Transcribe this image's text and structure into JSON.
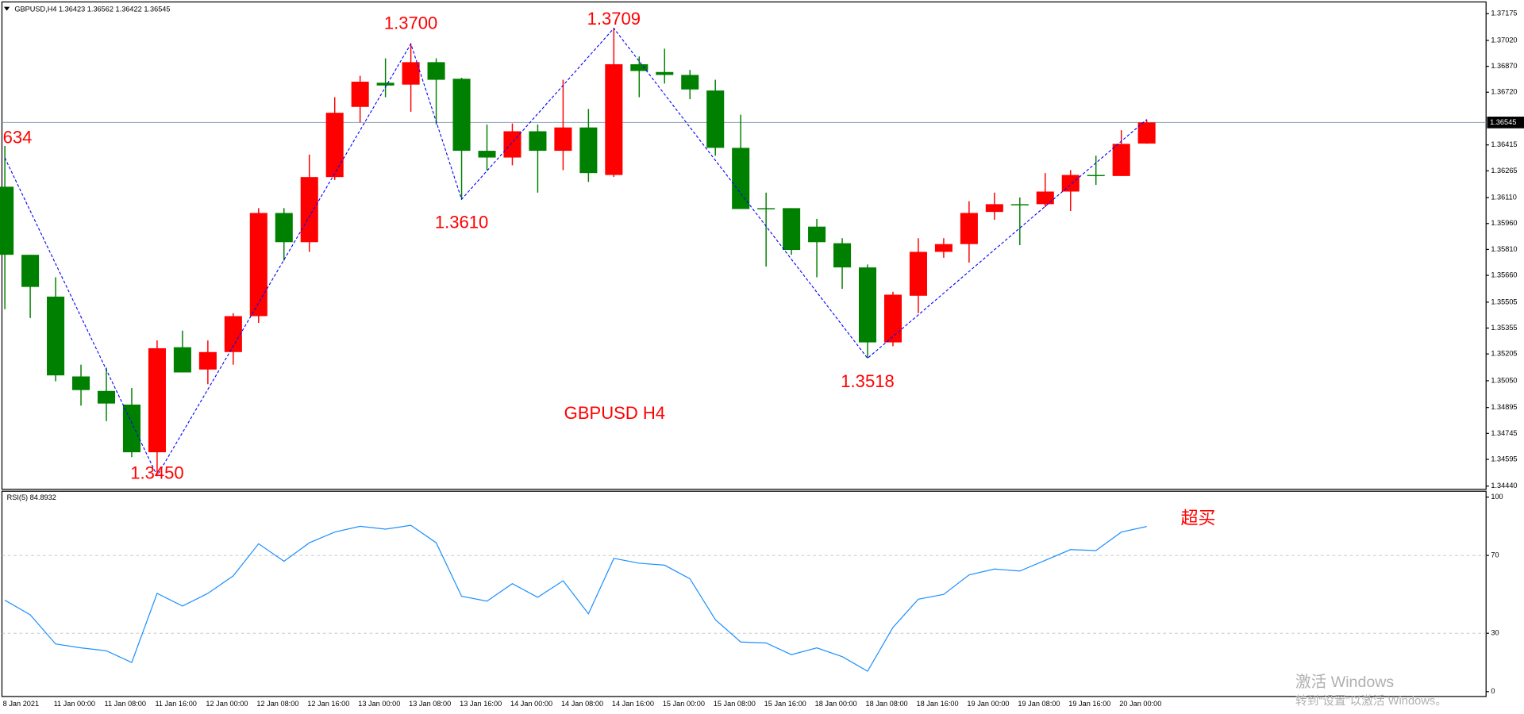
{
  "chart_data": [
    {
      "type": "candlestick",
      "title": "GBPUSD,H4",
      "annotation": "GBPUSD  H4",
      "categories": [
        "8 Jan 2021",
        null,
        "11 Jan 00:00",
        null,
        "11 Jan 08:00",
        null,
        "11 Jan 16:00",
        null,
        "12 Jan 00:00",
        null,
        "12 Jan 08:00",
        null,
        "12 Jan 16:00",
        null,
        "13 Jan 00:00",
        null,
        "13 Jan 08:00",
        null,
        "13 Jan 16:00",
        null,
        "14 Jan 00:00",
        null,
        "14 Jan 08:00",
        null,
        "14 Jan 16:00",
        null,
        "15 Jan 00:00",
        null,
        "15 Jan 08:00",
        null,
        "15 Jan 16:00",
        null,
        "18 Jan 00:00",
        null,
        "18 Jan 08:00",
        null,
        "18 Jan 16:00",
        null,
        "19 Jan 00:00",
        null,
        "19 Jan 08:00",
        null,
        "19 Jan 16:00",
        null,
        "20 Jan 00:00",
        null
      ],
      "open": [
        1.36173,
        1.35779,
        1.35537,
        1.35075,
        1.34991,
        1.34912,
        1.34636,
        1.35244,
        1.35115,
        1.35216,
        1.35424,
        1.36021,
        1.35852,
        1.36229,
        1.36635,
        1.36775,
        1.36764,
        1.36894,
        1.36798,
        1.36381,
        1.36342,
        1.36494,
        1.36381,
        1.36516,
        1.36241,
        1.36882,
        1.36837,
        1.3682,
        1.3673,
        1.36398,
        1.36049,
        1.36049,
        1.35942,
        1.35846,
        1.35706,
        1.35272,
        1.35542,
        1.35796,
        1.35841,
        1.36027,
        1.36072,
        1.36072,
        1.36145,
        1.36241,
        1.36235,
        1.36423
      ],
      "high": [
        1.36409,
        1.35779,
        1.35649,
        1.35143,
        1.35126,
        1.35008,
        1.35283,
        1.3534,
        1.35283,
        1.35441,
        1.36049,
        1.36049,
        1.36359,
        1.36691,
        1.36815,
        1.36916,
        1.37,
        1.36916,
        1.36804,
        1.36533,
        1.36539,
        1.36533,
        1.36792,
        1.36623,
        1.3709,
        1.36927,
        1.36972,
        1.36849,
        1.36792,
        1.3659,
        1.36139,
        1.36049,
        1.35987,
        1.35875,
        1.35723,
        1.35565,
        1.35875,
        1.35875,
        1.36089,
        1.36139,
        1.36111,
        1.36252,
        1.36269,
        1.36353,
        1.365,
        1.36562
      ],
      "low": [
        1.35464,
        1.35413,
        1.35047,
        1.34906,
        1.34816,
        1.34608,
        1.345,
        1.35098,
        1.3503,
        1.35143,
        1.35385,
        1.35745,
        1.35796,
        1.36212,
        1.36545,
        1.36691,
        1.36607,
        1.36533,
        1.361,
        1.36269,
        1.36297,
        1.36139,
        1.36269,
        1.36201,
        1.36229,
        1.36691,
        1.3677,
        1.3668,
        1.36353,
        1.36044,
        1.35711,
        1.35779,
        1.35649,
        1.35582,
        1.3518,
        1.3525,
        1.35441,
        1.35762,
        1.35734,
        1.35982,
        1.35835,
        1.36055,
        1.36032,
        1.36184,
        1.36235,
        1.36422
      ],
      "close": [
        1.35779,
        1.35593,
        1.35081,
        1.34996,
        1.34918,
        1.34636,
        1.35238,
        1.35098,
        1.35216,
        1.35424,
        1.36021,
        1.35852,
        1.36229,
        1.36601,
        1.36781,
        1.36759,
        1.36894,
        1.36792,
        1.36381,
        1.36342,
        1.36494,
        1.36381,
        1.36516,
        1.36252,
        1.36882,
        1.36843,
        1.3682,
        1.36736,
        1.36398,
        1.36044,
        1.36044,
        1.35807,
        1.35852,
        1.35706,
        1.35272,
        1.35548,
        1.35796,
        1.35841,
        1.36021,
        1.36072,
        1.36066,
        1.36145,
        1.36241,
        1.36235,
        1.36421,
        1.36545
      ],
      "up_color": "#ff0000",
      "down_color": "#008000",
      "zigzag_index": [
        0,
        6,
        16,
        18,
        24,
        34,
        45
      ],
      "zigzag_values": [
        1.3634,
        1.345,
        1.37,
        1.361,
        1.3709,
        1.3518,
        1.36562
      ],
      "zigzag_labels": [
        "634",
        "1.3450",
        "1.3700",
        "1.3610",
        "1.3709",
        "1.3518",
        null
      ],
      "zigzag_color": "#0000ff",
      "ylim": [
        1.3442,
        1.3724
      ],
      "yticks": [
        1.37175,
        {
          "value": 1.3702,
          "label": "1.37020"
        },
        {
          "value": 1.3687,
          "label": "1.36870"
        },
        {
          "value": 1.3672,
          "label": "1.36720"
        },
        1.36415,
        1.36265,
        {
          "value": 1.3611,
          "label": "1.36110"
        },
        {
          "value": 1.3596,
          "label": "1.35960"
        },
        {
          "value": 1.3581,
          "label": "1.35810"
        },
        {
          "value": 1.3566,
          "label": "1.35660"
        },
        1.35505,
        1.35355,
        1.35205,
        {
          "value": 1.3505,
          "label": "1.35050"
        },
        1.34895,
        1.34745,
        1.34595,
        {
          "value": 1.3444,
          "label": "1.34440"
        }
      ]
    },
    {
      "type": "line",
      "title": "RSI(5)",
      "annotation": "超买",
      "color": "#1e90ff",
      "values": [
        47,
        39.5,
        24.5,
        22.5,
        21,
        15,
        50.5,
        44,
        50.5,
        59.5,
        76,
        67,
        76.5,
        82,
        85,
        83.5,
        85.5,
        76.5,
        49,
        46.5,
        55.5,
        48.5,
        57,
        40,
        68.5,
        66,
        65,
        58,
        37,
        25.5,
        25,
        19,
        22.5,
        18,
        10.5,
        33,
        47.5,
        50,
        60,
        63,
        62,
        67.5,
        73,
        72.5,
        82,
        84.8932
      ],
      "ylim": [
        0,
        100
      ],
      "yticks": [
        0,
        30,
        70,
        100
      ]
    }
  ],
  "watermark": {
    "title": "激活 Windows",
    "subtitle": "转到“设置”以激活 Windows。"
  }
}
